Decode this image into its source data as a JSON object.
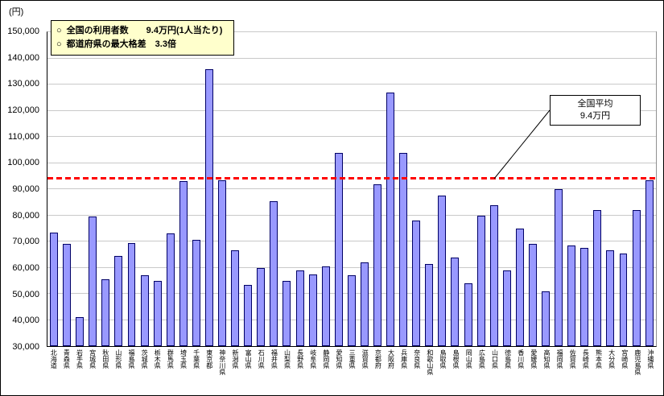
{
  "chart_data": {
    "type": "bar",
    "title": "",
    "y_unit": "(円)",
    "xlabel": "",
    "ylabel": "(円)",
    "ylim": [
      30000,
      150000
    ],
    "ytick_step": 10000,
    "grid": true,
    "legend_position": "none",
    "bar_fill": "#9999ff",
    "bar_border": "#000066",
    "header_notes": [
      {
        "bullet": "○",
        "text": "全国の利用者数　　9.4万円(1人当たり)"
      },
      {
        "bullet": "○",
        "text": "都道府県の最大格差　3.3倍"
      }
    ],
    "average_line": {
      "value": 94000,
      "color": "#ff0000",
      "label_lines": [
        "全国平均",
        "9.4万円"
      ]
    },
    "categories": [
      "北海道",
      "青森県",
      "岩手県",
      "宮城県",
      "秋田県",
      "山形県",
      "福島県",
      "茨城県",
      "栃木県",
      "群馬県",
      "埼玉県",
      "千葉県",
      "東京都",
      "神奈川県",
      "新潟県",
      "富山県",
      "石川県",
      "福井県",
      "山梨県",
      "長野県",
      "岐阜県",
      "静岡県",
      "愛知県",
      "三重県",
      "滋賀県",
      "京都府",
      "大阪府",
      "兵庫県",
      "奈良県",
      "和歌山県",
      "鳥取県",
      "島根県",
      "岡山県",
      "広島県",
      "山口県",
      "徳島県",
      "香川県",
      "愛媛県",
      "高知県",
      "福岡県",
      "佐賀県",
      "長崎県",
      "熊本県",
      "大分県",
      "宮崎県",
      "鹿児島県",
      "沖縄県"
    ],
    "values": [
      73500,
      69000,
      41000,
      79500,
      55500,
      64500,
      69500,
      57000,
      55000,
      73000,
      93000,
      70500,
      136000,
      93500,
      66500,
      53500,
      60000,
      85500,
      55000,
      59000,
      57500,
      60500,
      104000,
      57000,
      62000,
      92000,
      127000,
      104000,
      78000,
      61500,
      87500,
      64000,
      54000,
      80000,
      84000,
      59000,
      75000,
      69000,
      51000,
      90000,
      68500,
      67500,
      82000,
      66500,
      65500,
      82000,
      93500
    ]
  }
}
